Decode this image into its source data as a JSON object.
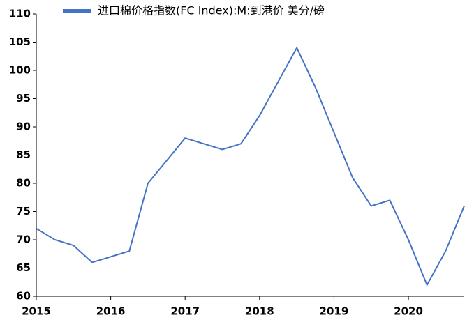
{
  "chart_data": {
    "type": "line",
    "legend_position": "top",
    "categories": [
      "2015",
      null,
      null,
      null,
      "2016",
      null,
      null,
      null,
      "2017",
      null,
      null,
      null,
      "2018",
      null,
      null,
      null,
      "2019",
      null,
      null,
      null,
      "2020",
      null,
      null,
      null
    ],
    "series": [
      {
        "name": "进口棉价格指数(FC Index):M:到港价 美分/磅",
        "color": "#4472c4",
        "values": [
          72,
          70,
          69,
          66,
          67,
          68,
          80,
          84,
          88,
          87,
          86,
          87,
          92,
          98,
          104,
          97,
          89,
          81,
          76,
          77,
          70,
          62,
          68,
          76
        ]
      }
    ],
    "ylim": [
      60,
      110
    ],
    "yticks": [
      60,
      65,
      70,
      75,
      80,
      85,
      90,
      95,
      100,
      105,
      110
    ],
    "grid": false
  }
}
